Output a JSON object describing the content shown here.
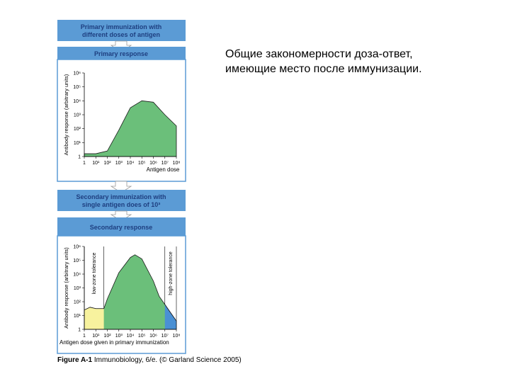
{
  "caption": "Общие закономерности доза-ответ, имеющие место после иммунизации.",
  "figure_credit": {
    "label": "Figure A-1",
    "text": "Immunobiology, 6/e. (© Garland Science 2005)"
  },
  "boxes": {
    "primary_immunization_line1": "Primary immunization with",
    "primary_immunization_line2": "different doses of antigen",
    "primary_response": "Primary response",
    "secondary_immunization_line1": "Secondary immunization with",
    "secondary_immunization_line2": "single antigen does of 10³",
    "secondary_response": "Secondary response"
  },
  "colors": {
    "box_blue": "#5b9bd5",
    "box_text": "#1e3f80",
    "curve_green": "#6bbf7a",
    "low_zone_yellow": "#f7f29e",
    "high_zone_blue": "#4a90d4",
    "arrow_fill": "#ffffff"
  },
  "chart_data": [
    {
      "type": "area",
      "title": "Primary response",
      "xlabel": "Antigen dose",
      "ylabel": "Antibody response (arbitrary units)",
      "x_tick_labels": [
        "1",
        "10¹",
        "10²",
        "10³",
        "10⁴",
        "10⁵",
        "10⁶",
        "10⁷",
        "10⁸"
      ],
      "y_tick_labels": [
        "1",
        "10¹",
        "10²",
        "10³",
        "10⁴",
        "10⁵",
        "10⁶"
      ],
      "x_log": [
        0,
        1,
        2,
        3,
        4,
        5,
        6,
        7,
        8
      ],
      "y_log": [
        0.2,
        0.2,
        0.4,
        1.9,
        3.5,
        4.0,
        3.9,
        3.0,
        2.2
      ]
    },
    {
      "type": "area",
      "title": "Secondary response",
      "xlabel": "Antigen dose given in primary immunization",
      "ylabel": "Antibody response (arbitrary units)",
      "x_tick_labels": [
        "1",
        "10¹",
        "10²",
        "10³",
        "10⁴",
        "10⁵",
        "10⁶",
        "10⁷",
        "10⁸"
      ],
      "y_tick_labels": [
        "1",
        "10¹",
        "10²",
        "10³",
        "10⁴",
        "10⁵",
        "10⁶"
      ],
      "x_log": [
        0,
        0.5,
        1,
        1.7,
        2,
        3,
        4,
        4.4,
        5,
        6,
        6.5,
        7,
        7.5,
        8
      ],
      "y_log": [
        1.4,
        1.6,
        1.5,
        1.5,
        2.2,
        4.1,
        5.2,
        5.4,
        5.1,
        3.5,
        2.4,
        1.8,
        1.2,
        0.6
      ],
      "zones": [
        {
          "name": "low-zone tolerance",
          "from": 0,
          "to": 1.7
        },
        {
          "name": "high-zone tolerance",
          "from": 7,
          "to": 8
        }
      ]
    }
  ]
}
